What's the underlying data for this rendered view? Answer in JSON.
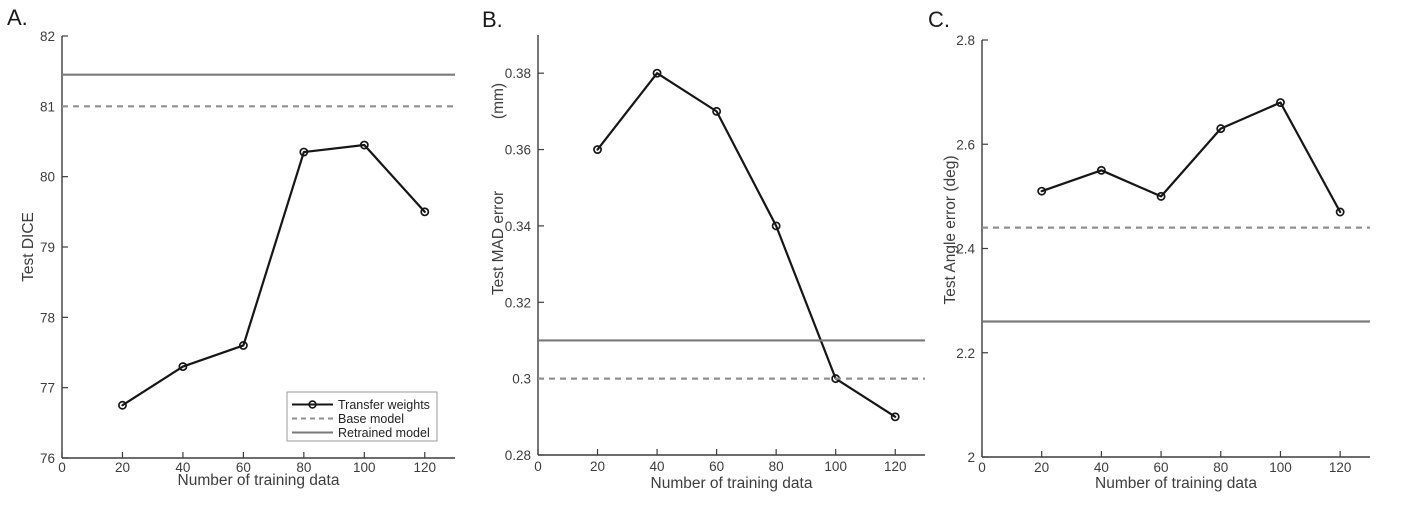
{
  "figure": {
    "background": "#ffffff",
    "axis_color": "#3d3d3d",
    "panel_count": 3
  },
  "chart_data": [
    {
      "type": "line",
      "panel_label": "A.",
      "title": "",
      "xlabel": "Number of training data",
      "ylabel": "Test DICE",
      "ylabel_unit": "",
      "xlim": [
        0,
        130
      ],
      "ylim": [
        76,
        82
      ],
      "grid": false,
      "x": [
        20,
        40,
        60,
        80,
        100,
        120
      ],
      "series": [
        {
          "name": "Transfer weights",
          "type": "line-markers",
          "color": "#161616",
          "values": [
            76.75,
            77.3,
            77.6,
            80.35,
            80.45,
            79.5
          ]
        },
        {
          "name": "Base model",
          "type": "hline-dashed",
          "color": "#909090",
          "value": 81.0
        },
        {
          "name": "Retrained model",
          "type": "hline-solid",
          "color": "#7a7a7a",
          "value": 81.45
        }
      ],
      "xtick_values": [
        0,
        20,
        40,
        60,
        80,
        100,
        120
      ],
      "xtick_labels": [
        "0",
        "20",
        "40",
        "60",
        "80",
        "100",
        "120"
      ],
      "ytick_values": [
        76,
        77,
        78,
        79,
        80,
        81,
        82
      ],
      "ytick_labels": [
        "76",
        "77",
        "78",
        "79",
        "80",
        "81",
        "82"
      ],
      "legend": {
        "visible": true,
        "location": "southeast"
      }
    },
    {
      "type": "line",
      "panel_label": "B.",
      "title": "",
      "xlabel": "Number of training data",
      "ylabel": "Test MAD error",
      "ylabel_unit": "(mm)",
      "xlim": [
        0,
        130
      ],
      "ylim": [
        0.28,
        0.39
      ],
      "grid": false,
      "x": [
        20,
        40,
        60,
        80,
        100,
        120
      ],
      "series": [
        {
          "name": "Transfer weights",
          "type": "line-markers",
          "color": "#161616",
          "values": [
            0.36,
            0.38,
            0.37,
            0.34,
            0.3,
            0.29
          ]
        },
        {
          "name": "Base model",
          "type": "hline-dashed",
          "color": "#909090",
          "value": 0.3
        },
        {
          "name": "Retrained model",
          "type": "hline-solid",
          "color": "#7a7a7a",
          "value": 0.31
        }
      ],
      "xtick_values": [
        0,
        20,
        40,
        60,
        80,
        100,
        120
      ],
      "xtick_labels": [
        "0",
        "20",
        "40",
        "60",
        "80",
        "100",
        "120"
      ],
      "ytick_values": [
        0.28,
        0.3,
        0.32,
        0.34,
        0.36,
        0.38
      ],
      "ytick_labels": [
        "0.28",
        "0.3",
        "0.32",
        "0.34",
        "0.36",
        "0.38"
      ],
      "legend": {
        "visible": false,
        "location": ""
      }
    },
    {
      "type": "line",
      "panel_label": "C.",
      "title": "",
      "xlabel": "Number of training data",
      "ylabel": "Test Angle error (deg)",
      "ylabel_unit": "",
      "xlim": [
        0,
        130
      ],
      "ylim": [
        2.0,
        2.8
      ],
      "grid": false,
      "x": [
        20,
        40,
        60,
        80,
        100,
        120
      ],
      "series": [
        {
          "name": "Transfer weights",
          "type": "line-markers",
          "color": "#161616",
          "values": [
            2.51,
            2.55,
            2.5,
            2.63,
            2.68,
            2.47
          ]
        },
        {
          "name": "Base model",
          "type": "hline-dashed",
          "color": "#909090",
          "value": 2.44
        },
        {
          "name": "Retrained model",
          "type": "hline-solid",
          "color": "#7a7a7a",
          "value": 2.26
        }
      ],
      "xtick_values": [
        0,
        20,
        40,
        60,
        80,
        100,
        120
      ],
      "xtick_labels": [
        "0",
        "20",
        "40",
        "60",
        "80",
        "100",
        "120"
      ],
      "ytick_values": [
        2.0,
        2.2,
        2.4,
        2.6,
        2.8
      ],
      "ytick_labels": [
        "2",
        "2.2",
        "2.4",
        "2.6",
        "2.8"
      ],
      "legend": {
        "visible": false,
        "location": ""
      }
    }
  ]
}
